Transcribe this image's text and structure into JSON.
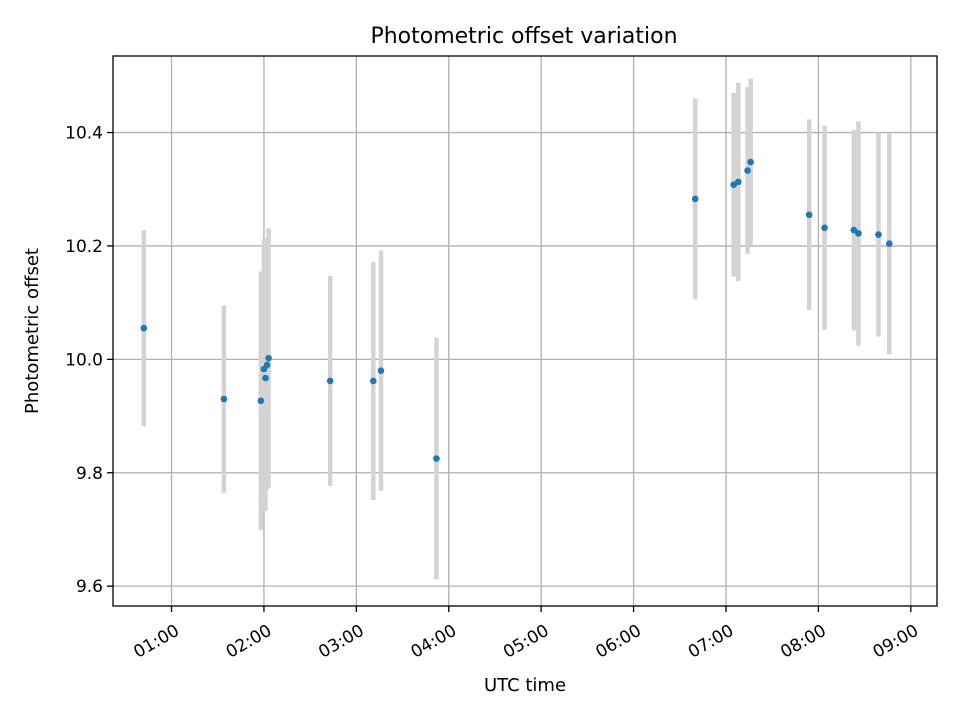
{
  "chart_data": {
    "type": "scatter",
    "title": "Photometric offset variation",
    "xlabel": "UTC time",
    "ylabel": "Photometric offset",
    "x_ticks": [
      "01:00",
      "02:00",
      "03:00",
      "04:00",
      "05:00",
      "06:00",
      "07:00",
      "08:00",
      "09:00"
    ],
    "y_ticks": [
      "9.6",
      "9.8",
      "10.0",
      "10.2",
      "10.4"
    ],
    "xlim": [
      "00:22",
      "09:17"
    ],
    "ylim": [
      9.565,
      10.535
    ],
    "grid": true,
    "colors": {
      "point": "#1f77b4",
      "errorbar": "#d3d3d3"
    },
    "points": [
      {
        "x": "00:42",
        "y": 10.055,
        "yerr": 0.173
      },
      {
        "x": "01:34",
        "y": 9.93,
        "yerr": 0.165
      },
      {
        "x": "01:58",
        "y": 9.927,
        "yerr": 0.228
      },
      {
        "x": "02:00",
        "y": 9.983,
        "yerr": 0.23
      },
      {
        "x": "02:01",
        "y": 9.967,
        "yerr": 0.235
      },
      {
        "x": "02:02",
        "y": 9.99,
        "yerr": 0.22
      },
      {
        "x": "02:03",
        "y": 10.002,
        "yerr": 0.229
      },
      {
        "x": "02:43",
        "y": 9.962,
        "yerr": 0.185
      },
      {
        "x": "03:11",
        "y": 9.962,
        "yerr": 0.21
      },
      {
        "x": "03:16",
        "y": 9.98,
        "yerr": 0.212
      },
      {
        "x": "03:52",
        "y": 9.825,
        "yerr": 0.213
      },
      {
        "x": "06:40",
        "y": 10.283,
        "yerr": 0.177
      },
      {
        "x": "07:05",
        "y": 10.308,
        "yerr": 0.162
      },
      {
        "x": "07:08",
        "y": 10.313,
        "yerr": 0.175
      },
      {
        "x": "07:14",
        "y": 10.333,
        "yerr": 0.147
      },
      {
        "x": "07:16",
        "y": 10.348,
        "yerr": 0.147
      },
      {
        "x": "07:54",
        "y": 10.255,
        "yerr": 0.168
      },
      {
        "x": "08:04",
        "y": 10.232,
        "yerr": 0.18
      },
      {
        "x": "08:23",
        "y": 10.228,
        "yerr": 0.177
      },
      {
        "x": "08:26",
        "y": 10.222,
        "yerr": 0.198
      },
      {
        "x": "08:39",
        "y": 10.22,
        "yerr": 0.18
      },
      {
        "x": "08:46",
        "y": 10.204,
        "yerr": 0.195
      }
    ]
  }
}
